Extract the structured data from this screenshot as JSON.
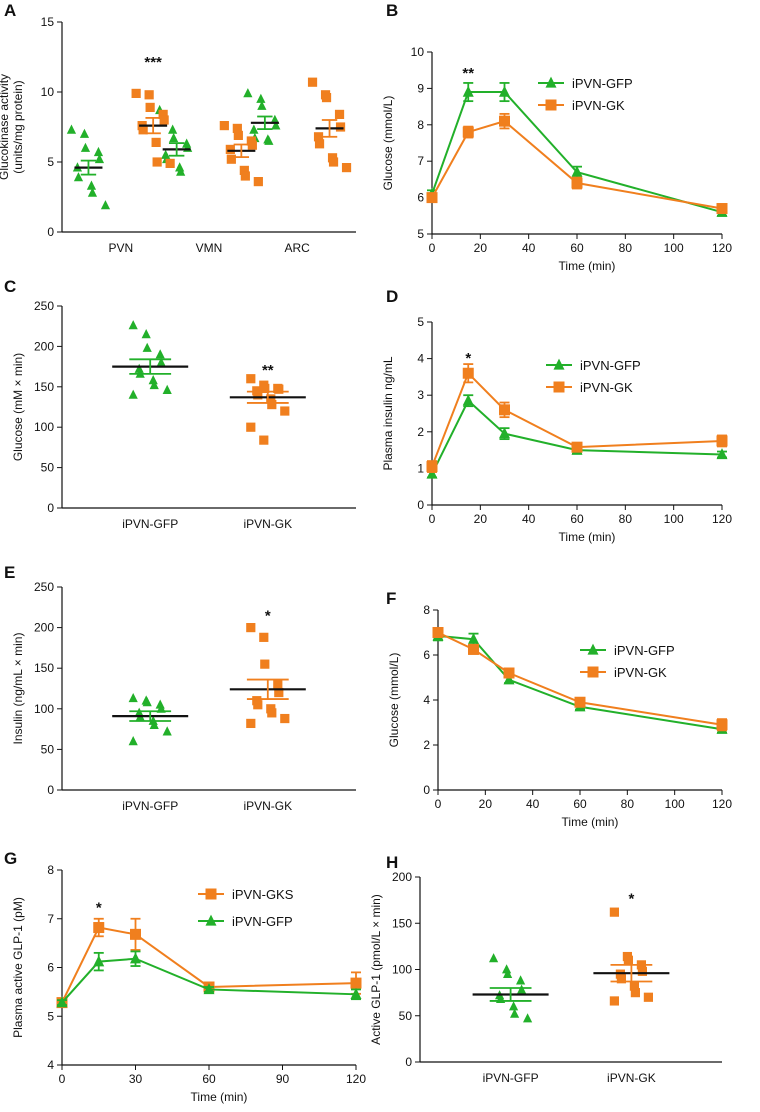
{
  "colors": {
    "gfp": "#22b02a",
    "gk": "#f07f1e",
    "mean": "#111111"
  },
  "chart_data": [
    {
      "panel": "A",
      "type": "scatter",
      "ylabel": [
        "Glucokinase activity",
        "(units/mg protein)"
      ],
      "yticks": [
        0,
        5,
        10,
        15
      ],
      "ylim": [
        0,
        15
      ],
      "categories": [
        "PVN",
        "VMN",
        "ARC"
      ],
      "series": [
        {
          "name": "GFP",
          "color": "gfp",
          "marker": "triangle",
          "groups": [
            [
              7.3,
              7.0,
              6.0,
              5.7,
              5.2,
              4.6,
              3.9,
              3.3,
              2.8,
              1.9
            ],
            [
              8.7,
              7.3,
              6.7,
              6.3,
              6.0,
              5.5,
              5.2,
              4.6,
              4.3
            ],
            [
              9.9,
              9.5,
              9.0,
              8.0,
              7.6,
              7.3,
              6.7,
              6.6,
              6.5
            ]
          ],
          "means": [
            4.6,
            5.9,
            7.8
          ],
          "sems": [
            0.5,
            0.45,
            0.45
          ]
        },
        {
          "name": "GK",
          "color": "gk",
          "marker": "square",
          "groups": [
            [
              9.9,
              9.8,
              8.9,
              8.4,
              8.0,
              7.6,
              7.3,
              6.4,
              5.0,
              4.9
            ],
            [
              7.6,
              7.4,
              6.9,
              6.5,
              6.2,
              5.9,
              5.2,
              4.4,
              4.0,
              3.6
            ],
            [
              10.7,
              9.8,
              9.6,
              8.4,
              7.5,
              6.8,
              6.3,
              5.3,
              5.0,
              4.6
            ]
          ],
          "means": [
            7.6,
            5.8,
            7.4
          ],
          "sems": [
            0.55,
            0.45,
            0.6
          ]
        }
      ],
      "annotations": [
        {
          "text": "***",
          "category": 0,
          "y": 12.2
        }
      ]
    },
    {
      "panel": "B",
      "type": "line",
      "ylabel": "Glucose (mmol/L)",
      "xlabel": "Time (min)",
      "xticks": [
        0,
        20,
        40,
        60,
        80,
        100,
        120
      ],
      "xlim": [
        0,
        120
      ],
      "yticks": [
        5,
        6,
        7,
        8,
        9,
        10
      ],
      "ylim": [
        5,
        10
      ],
      "series": [
        {
          "name": "iPVN-GFP",
          "color": "gfp",
          "marker": "triangle",
          "x": [
            0,
            15,
            30,
            60,
            120
          ],
          "y": [
            6.1,
            8.9,
            8.9,
            6.7,
            5.6
          ],
          "err": [
            0.1,
            0.25,
            0.25,
            0.15,
            0.1
          ]
        },
        {
          "name": "iPVN-GK",
          "color": "gk",
          "marker": "square",
          "x": [
            0,
            15,
            30,
            60,
            120
          ],
          "y": [
            6.0,
            7.8,
            8.1,
            6.4,
            5.7
          ],
          "err": [
            0.1,
            0.15,
            0.2,
            0.15,
            0.1
          ]
        }
      ],
      "legend": "top-right",
      "annotations": [
        {
          "text": "**",
          "x": 15,
          "y": 9.45
        }
      ]
    },
    {
      "panel": "C",
      "type": "scatter",
      "ylabel": "Glucose (mM × min)",
      "yticks": [
        0,
        50,
        100,
        150,
        200,
        250
      ],
      "ylim": [
        0,
        250
      ],
      "categories": [
        "iPVN-GFP",
        "iPVN-GK"
      ],
      "series": [
        {
          "name": "iPVN-GFP",
          "color": "gfp",
          "marker": "triangle",
          "values": [
            226,
            215,
            198,
            190,
            180,
            172,
            166,
            158,
            152,
            146,
            140
          ],
          "mean": 175,
          "sem": 9
        },
        {
          "name": "iPVN-GK",
          "color": "gk",
          "marker": "square",
          "values": [
            160,
            152,
            148,
            148,
            147,
            145,
            140,
            135,
            128,
            120,
            100,
            84
          ],
          "mean": 137,
          "sem": 7
        }
      ],
      "annotations": [
        {
          "text": "**",
          "category": 1,
          "y": 172
        }
      ]
    },
    {
      "panel": "D",
      "type": "line",
      "ylabel": "Plasma insulin ng/mL",
      "xlabel": "Time (min)",
      "xticks": [
        0,
        20,
        40,
        60,
        80,
        100,
        120
      ],
      "xlim": [
        0,
        120
      ],
      "yticks": [
        0,
        1,
        2,
        3,
        4,
        5
      ],
      "ylim": [
        0,
        5
      ],
      "series": [
        {
          "name": "iPVN-GFP",
          "color": "gfp",
          "marker": "triangle",
          "x": [
            0,
            15,
            30,
            60,
            120
          ],
          "y": [
            0.85,
            2.85,
            1.95,
            1.5,
            1.38
          ],
          "err": [
            0.1,
            0.15,
            0.15,
            0.1,
            0.08
          ]
        },
        {
          "name": "iPVN-GK",
          "color": "gk",
          "marker": "square",
          "x": [
            0,
            15,
            30,
            60,
            120
          ],
          "y": [
            1.05,
            3.6,
            2.6,
            1.58,
            1.75
          ],
          "err": [
            0.15,
            0.25,
            0.2,
            0.1,
            0.15
          ]
        }
      ],
      "legend": "top-right",
      "annotations": [
        {
          "text": "*",
          "x": 15,
          "y": 4.05
        }
      ]
    },
    {
      "panel": "E",
      "type": "scatter",
      "ylabel": "Insulin (ng/mL × min)",
      "yticks": [
        0,
        50,
        100,
        150,
        200,
        250
      ],
      "ylim": [
        0,
        250
      ],
      "categories": [
        "iPVN-GFP",
        "iPVN-GK"
      ],
      "series": [
        {
          "name": "iPVN-GFP",
          "color": "gfp",
          "marker": "triangle",
          "values": [
            113,
            110,
            108,
            105,
            100,
            95,
            90,
            85,
            80,
            72,
            60
          ],
          "mean": 91,
          "sem": 6
        },
        {
          "name": "iPVN-GK",
          "color": "gk",
          "marker": "square",
          "values": [
            200,
            188,
            155,
            130,
            120,
            110,
            105,
            100,
            95,
            88,
            82
          ],
          "mean": 124,
          "sem": 12
        }
      ],
      "annotations": [
        {
          "text": "*",
          "category": 1,
          "y": 216
        }
      ]
    },
    {
      "panel": "F",
      "type": "line",
      "ylabel": "Glucose (mmol/L)",
      "xlabel": "Time (min)",
      "xticks": [
        0,
        20,
        40,
        60,
        80,
        100,
        120
      ],
      "xlim": [
        0,
        120
      ],
      "yticks": [
        0,
        2,
        4,
        6,
        8
      ],
      "ylim": [
        0,
        8
      ],
      "series": [
        {
          "name": "iPVN-GFP",
          "color": "gfp",
          "marker": "triangle",
          "x": [
            0,
            15,
            30,
            60,
            120
          ],
          "y": [
            6.85,
            6.7,
            4.9,
            3.7,
            2.7
          ],
          "err": [
            0.2,
            0.25,
            0.15,
            0.12,
            0.15
          ]
        },
        {
          "name": "iPVN-GK",
          "color": "gk",
          "marker": "square",
          "x": [
            0,
            15,
            30,
            60,
            120
          ],
          "y": [
            7.0,
            6.25,
            5.2,
            3.9,
            2.9
          ],
          "err": [
            0.15,
            0.2,
            0.2,
            0.15,
            0.25
          ]
        }
      ],
      "legend": "top-right"
    },
    {
      "panel": "G",
      "type": "line",
      "ylabel": "Plasma active GLP-1 (pM)",
      "xlabel": "Time (min)",
      "xticks": [
        0,
        30,
        60,
        90,
        120
      ],
      "xlim": [
        0,
        120
      ],
      "yticks": [
        4,
        5,
        6,
        7,
        8
      ],
      "ylim": [
        4,
        8
      ],
      "series": [
        {
          "name": "iPVN-GKS",
          "color": "gk",
          "marker": "square",
          "x": [
            0,
            15,
            30,
            60,
            120
          ],
          "y": [
            5.28,
            6.82,
            6.68,
            5.6,
            5.68
          ],
          "err": [
            0.05,
            0.18,
            0.32,
            0.08,
            0.22
          ]
        },
        {
          "name": "iPVN-GFP",
          "color": "gfp",
          "marker": "triangle",
          "x": [
            0,
            15,
            30,
            60,
            120
          ],
          "y": [
            5.28,
            6.12,
            6.18,
            5.55,
            5.45
          ],
          "err": [
            0.05,
            0.18,
            0.15,
            0.05,
            0.1
          ]
        }
      ],
      "legend": "top-right",
      "annotations": [
        {
          "text": "*",
          "x": 15,
          "y": 7.25
        }
      ]
    },
    {
      "panel": "H",
      "type": "scatter",
      "ylabel": "Active GLP-1 (pmol/L × min)",
      "yticks": [
        0,
        50,
        100,
        150,
        200
      ],
      "ylim": [
        0,
        200
      ],
      "categories": [
        "iPVN-GFP",
        "iPVN-GK"
      ],
      "series": [
        {
          "name": "iPVN-GFP",
          "color": "gfp",
          "marker": "triangle",
          "values": [
            112,
            100,
            95,
            88,
            78,
            72,
            68,
            60,
            52,
            47
          ],
          "mean": 73,
          "sem": 7
        },
        {
          "name": "iPVN-GK",
          "color": "gk",
          "marker": "square",
          "values": [
            162,
            114,
            110,
            105,
            98,
            95,
            90,
            82,
            75,
            70,
            66
          ],
          "mean": 96,
          "sem": 9
        },
        {
          "name": "",
          "color": "gk",
          "marker": "square",
          "values": [],
          "mean": null,
          "sem": null
        }
      ],
      "annotations": [
        {
          "text": "*",
          "category": 1,
          "y": 178
        }
      ]
    }
  ]
}
